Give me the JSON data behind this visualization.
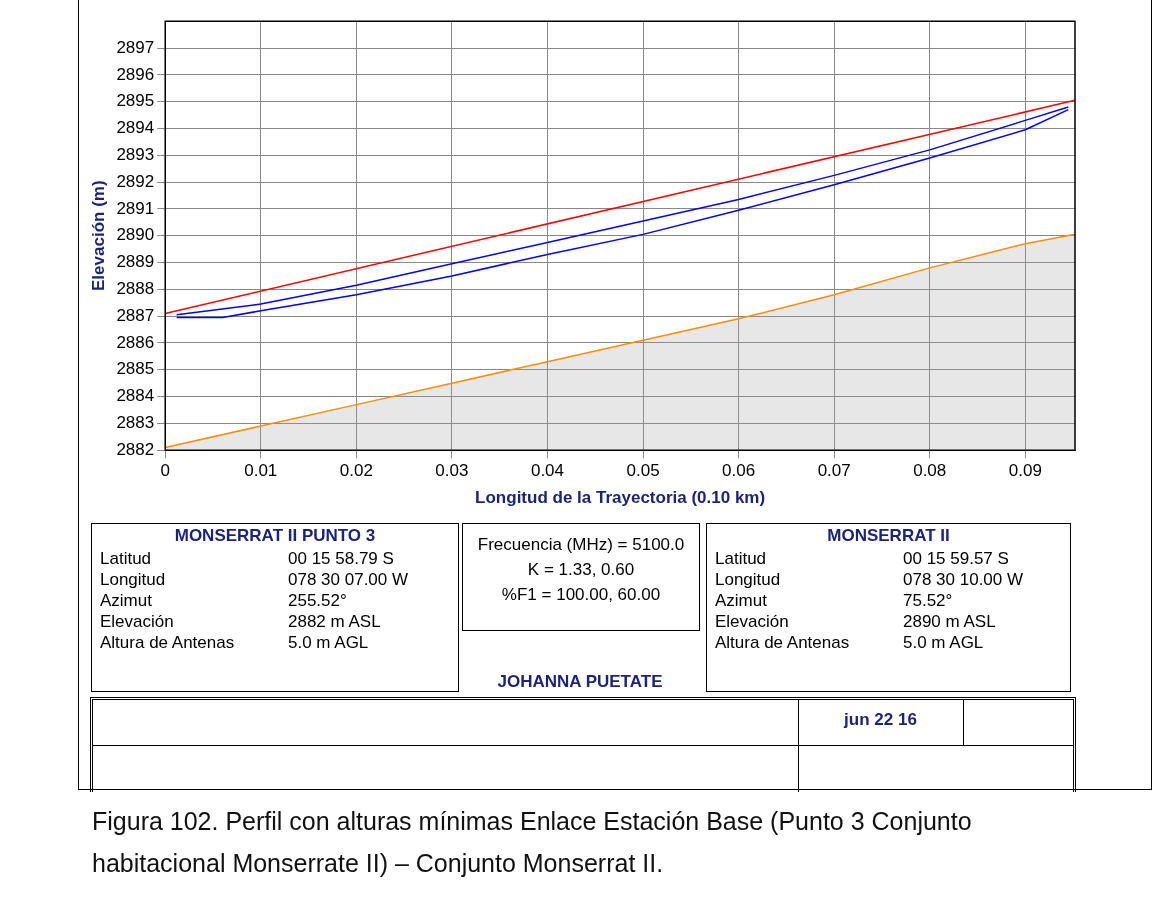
{
  "chart_data": {
    "type": "line",
    "xlabel": "Longitud de la Trayectoria (0.10 km)",
    "ylabel": "Elevación (m)",
    "xlim": [
      0,
      0.0952
    ],
    "ylim": [
      2882,
      2898
    ],
    "xticks": [
      0,
      0.01,
      0.02,
      0.03,
      0.04,
      0.05,
      0.06,
      0.07,
      0.08,
      0.09
    ],
    "yticks": [
      2882,
      2883,
      2884,
      2885,
      2886,
      2887,
      2888,
      2889,
      2890,
      2891,
      2892,
      2893,
      2894,
      2895,
      2896,
      2897
    ],
    "grid": true,
    "legend": false,
    "marker": "none",
    "line_style": "solid",
    "series": [
      {
        "type": "area",
        "color": "#ff8c00",
        "x": [
          0,
          0.01,
          0.02,
          0.03,
          0.04,
          0.05,
          0.06,
          0.07,
          0.08,
          0.09,
          0.0952
        ],
        "values": [
          2882.1,
          2882.9,
          2883.7,
          2884.5,
          2885.3,
          2886.1,
          2886.9,
          2887.8,
          2888.8,
          2889.7,
          2890.05
        ]
      },
      {
        "type": "line",
        "color": "#ff0000",
        "x": [
          0,
          0.0952
        ],
        "values": [
          2887.1,
          2895.05
        ]
      },
      {
        "type": "line",
        "color": "#0000ff",
        "x": [
          0.0012,
          0.01,
          0.02,
          0.03,
          0.04,
          0.05,
          0.06,
          0.07,
          0.08,
          0.09,
          0.0945
        ],
        "values": [
          2887.05,
          2887.45,
          2888.15,
          2888.95,
          2889.75,
          2890.55,
          2891.35,
          2892.25,
          2893.2,
          2894.3,
          2894.8
        ]
      },
      {
        "type": "line",
        "color": "#0000ff",
        "x": [
          0.0012,
          0.006,
          0.01,
          0.02,
          0.03,
          0.04,
          0.05,
          0.06,
          0.07,
          0.08,
          0.09,
          0.0945
        ],
        "values": [
          2886.95,
          2886.95,
          2887.2,
          2887.8,
          2888.5,
          2889.3,
          2890.05,
          2890.95,
          2891.9,
          2892.9,
          2893.95,
          2894.7
        ]
      }
    ],
    "annotations": [
      "MONSERRAT II PUNTO 3",
      "Latitud",
      "00 15 58.79 S",
      "Longitud",
      "078 30 07.00 W",
      "Azimut",
      "255.52°",
      "Elevación",
      "2882 m ASL",
      "Altura de Antenas",
      "5.0 m AGL",
      "Frecuencia (MHz) = 5100.0",
      "K = 1.33, 0.60",
      "%F1 = 100.00, 60.00",
      "JOHANNA PUETATE",
      "MONSERRAT II",
      "Latitud",
      "00 15 59.57 S",
      "Longitud",
      "078 30 10.00 W",
      "Azimut",
      "75.52°",
      "Elevación",
      "2890 m ASL",
      "Altura de Antenas",
      "5.0 m AGL",
      "jun 22 16",
      "Figura 102. Perfil con alturas mínimas Enlace Estación Base (Punto 3 Conjunto habitacional Monserrate II) – Conjunto Monserrat II."
    ]
  }
}
